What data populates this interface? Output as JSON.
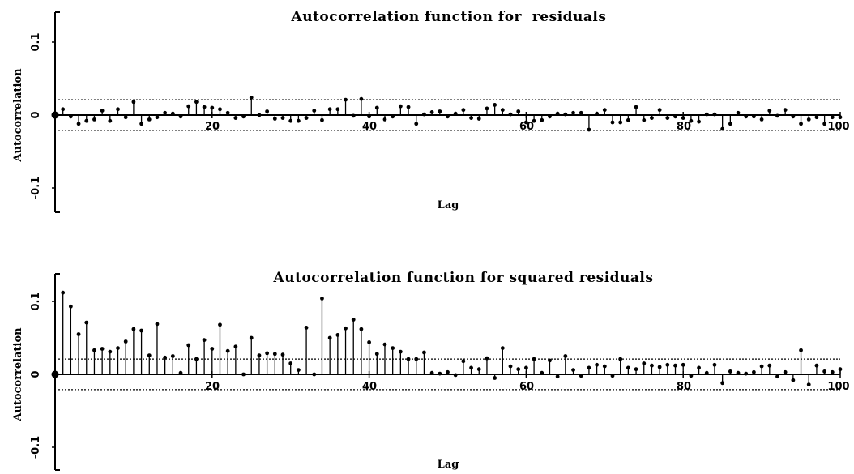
{
  "chart_data": [
    {
      "type": "stem",
      "title": "Autocorrelation function for  residuals",
      "xlabel": "Lag",
      "ylabel": "Autocorrelation",
      "xlim": [
        0,
        100
      ],
      "ylim": [
        -0.14,
        0.14
      ],
      "x_ticks": [
        20,
        40,
        60,
        80,
        100
      ],
      "x_tick_labels": [
        "20",
        "40",
        "60",
        "80",
        "100"
      ],
      "y_ticks": [
        0.1,
        0,
        -0.1
      ],
      "y_tick_labels": [
        "0.1",
        "0",
        "-0.1"
      ],
      "confidence_band": [
        0.021,
        -0.021
      ],
      "lag0_marker": true,
      "x": [
        1,
        2,
        3,
        4,
        5,
        6,
        7,
        8,
        9,
        10,
        11,
        12,
        13,
        14,
        15,
        16,
        17,
        18,
        19,
        20,
        21,
        22,
        23,
        24,
        25,
        26,
        27,
        28,
        29,
        30,
        31,
        32,
        33,
        34,
        35,
        36,
        37,
        38,
        39,
        40,
        41,
        42,
        43,
        44,
        45,
        46,
        47,
        48,
        49,
        50,
        51,
        52,
        53,
        54,
        55,
        56,
        57,
        58,
        59,
        60,
        61,
        62,
        63,
        64,
        65,
        66,
        67,
        68,
        69,
        70,
        71,
        72,
        73,
        74,
        75,
        76,
        77,
        78,
        79,
        80,
        81,
        82,
        83,
        84,
        85,
        86,
        87,
        88,
        89,
        90,
        91,
        92,
        93,
        94,
        95,
        96,
        97,
        98,
        99,
        100
      ],
      "values": [
        0.008,
        -0.002,
        -0.012,
        -0.008,
        -0.006,
        0.006,
        -0.008,
        0.008,
        -0.003,
        0.018,
        -0.012,
        -0.006,
        -0.003,
        0.003,
        0.002,
        -0.002,
        0.012,
        0.018,
        0.011,
        0.01,
        0.008,
        0.003,
        -0.004,
        -0.002,
        0.024,
        0,
        0.005,
        -0.005,
        -0.004,
        -0.008,
        -0.008,
        -0.004,
        0.006,
        -0.007,
        0.008,
        0.008,
        0.021,
        -0.001,
        0.022,
        -0.002,
        0.01,
        -0.006,
        -0.002,
        0.012,
        0.011,
        -0.012,
        0.001,
        0.004,
        0.005,
        -0.002,
        0.002,
        0.007,
        -0.004,
        -0.005,
        0.009,
        0.014,
        0.007,
        0.001,
        0.005,
        -0.01,
        -0.008,
        -0.007,
        -0.002,
        0.002,
        0.001,
        0.003,
        0.003,
        -0.02,
        0.002,
        0.007,
        -0.01,
        -0.01,
        -0.007,
        0.011,
        -0.007,
        -0.004,
        0.007,
        -0.004,
        -0.002,
        -0.004,
        -0.008,
        -0.009,
        0.001,
        0.001,
        -0.019,
        -0.012,
        0.003,
        -0.002,
        -0.002,
        -0.006,
        0.006,
        -0.001,
        0.007,
        -0.002,
        -0.012,
        -0.006,
        -0.003,
        -0.012,
        -0.003,
        -0.003
      ]
    },
    {
      "type": "stem",
      "title": "Autocorrelation function for squared residuals",
      "xlabel": "Lag",
      "ylabel": "Autocorrelation",
      "xlim": [
        0,
        100
      ],
      "ylim": [
        -0.14,
        0.14
      ],
      "x_ticks": [
        20,
        40,
        60,
        80,
        100
      ],
      "x_tick_labels": [
        "20",
        "40",
        "60",
        "80",
        "100"
      ],
      "y_ticks": [
        0.1,
        0,
        -0.1
      ],
      "y_tick_labels": [
        "0.1",
        "0",
        "-0.1"
      ],
      "confidence_band": [
        0.021,
        -0.021
      ],
      "lag0_marker": true,
      "x": [
        1,
        2,
        3,
        4,
        5,
        6,
        7,
        8,
        9,
        10,
        11,
        12,
        13,
        14,
        15,
        16,
        17,
        18,
        19,
        20,
        21,
        22,
        23,
        24,
        25,
        26,
        27,
        28,
        29,
        30,
        31,
        32,
        33,
        34,
        35,
        36,
        37,
        38,
        39,
        40,
        41,
        42,
        43,
        44,
        45,
        46,
        47,
        48,
        49,
        50,
        51,
        52,
        53,
        54,
        55,
        56,
        57,
        58,
        59,
        60,
        61,
        62,
        63,
        64,
        65,
        66,
        67,
        68,
        69,
        70,
        71,
        72,
        73,
        74,
        75,
        76,
        77,
        78,
        79,
        80,
        81,
        82,
        83,
        84,
        85,
        86,
        87,
        88,
        89,
        90,
        91,
        92,
        93,
        94,
        95,
        96,
        97,
        98,
        99,
        100
      ],
      "values": [
        0.112,
        0.093,
        0.055,
        0.071,
        0.033,
        0.035,
        0.031,
        0.036,
        0.045,
        0.062,
        0.06,
        0.026,
        0.069,
        0.023,
        0.025,
        0.002,
        0.04,
        0.021,
        0.047,
        0.035,
        0.068,
        0.032,
        0.038,
        0,
        0.05,
        0.026,
        0.029,
        0.028,
        0.027,
        0.015,
        0.006,
        0.064,
        0,
        0.104,
        0.05,
        0.054,
        0.063,
        0.075,
        0.062,
        0.044,
        0.028,
        0.041,
        0.036,
        0.031,
        0.021,
        0.021,
        0.03,
        0.002,
        0.001,
        0.003,
        -0.001,
        0.018,
        0.009,
        0.007,
        0.022,
        -0.005,
        0.036,
        0.011,
        0.007,
        0.009,
        0.021,
        0.002,
        0.019,
        -0.003,
        0.025,
        0.006,
        -0.002,
        0.009,
        0.013,
        0.011,
        -0.002,
        0.021,
        0.009,
        0.007,
        0.015,
        0.012,
        0.01,
        0.013,
        0.012,
        0.013,
        -0.002,
        0.009,
        0.002,
        0.013,
        -0.012,
        0.004,
        0.002,
        0.001,
        0.003,
        0.011,
        0.012,
        -0.003,
        0.003,
        -0.008,
        0.033,
        -0.014,
        0.012,
        0.004,
        0.003,
        0.007
      ]
    }
  ]
}
